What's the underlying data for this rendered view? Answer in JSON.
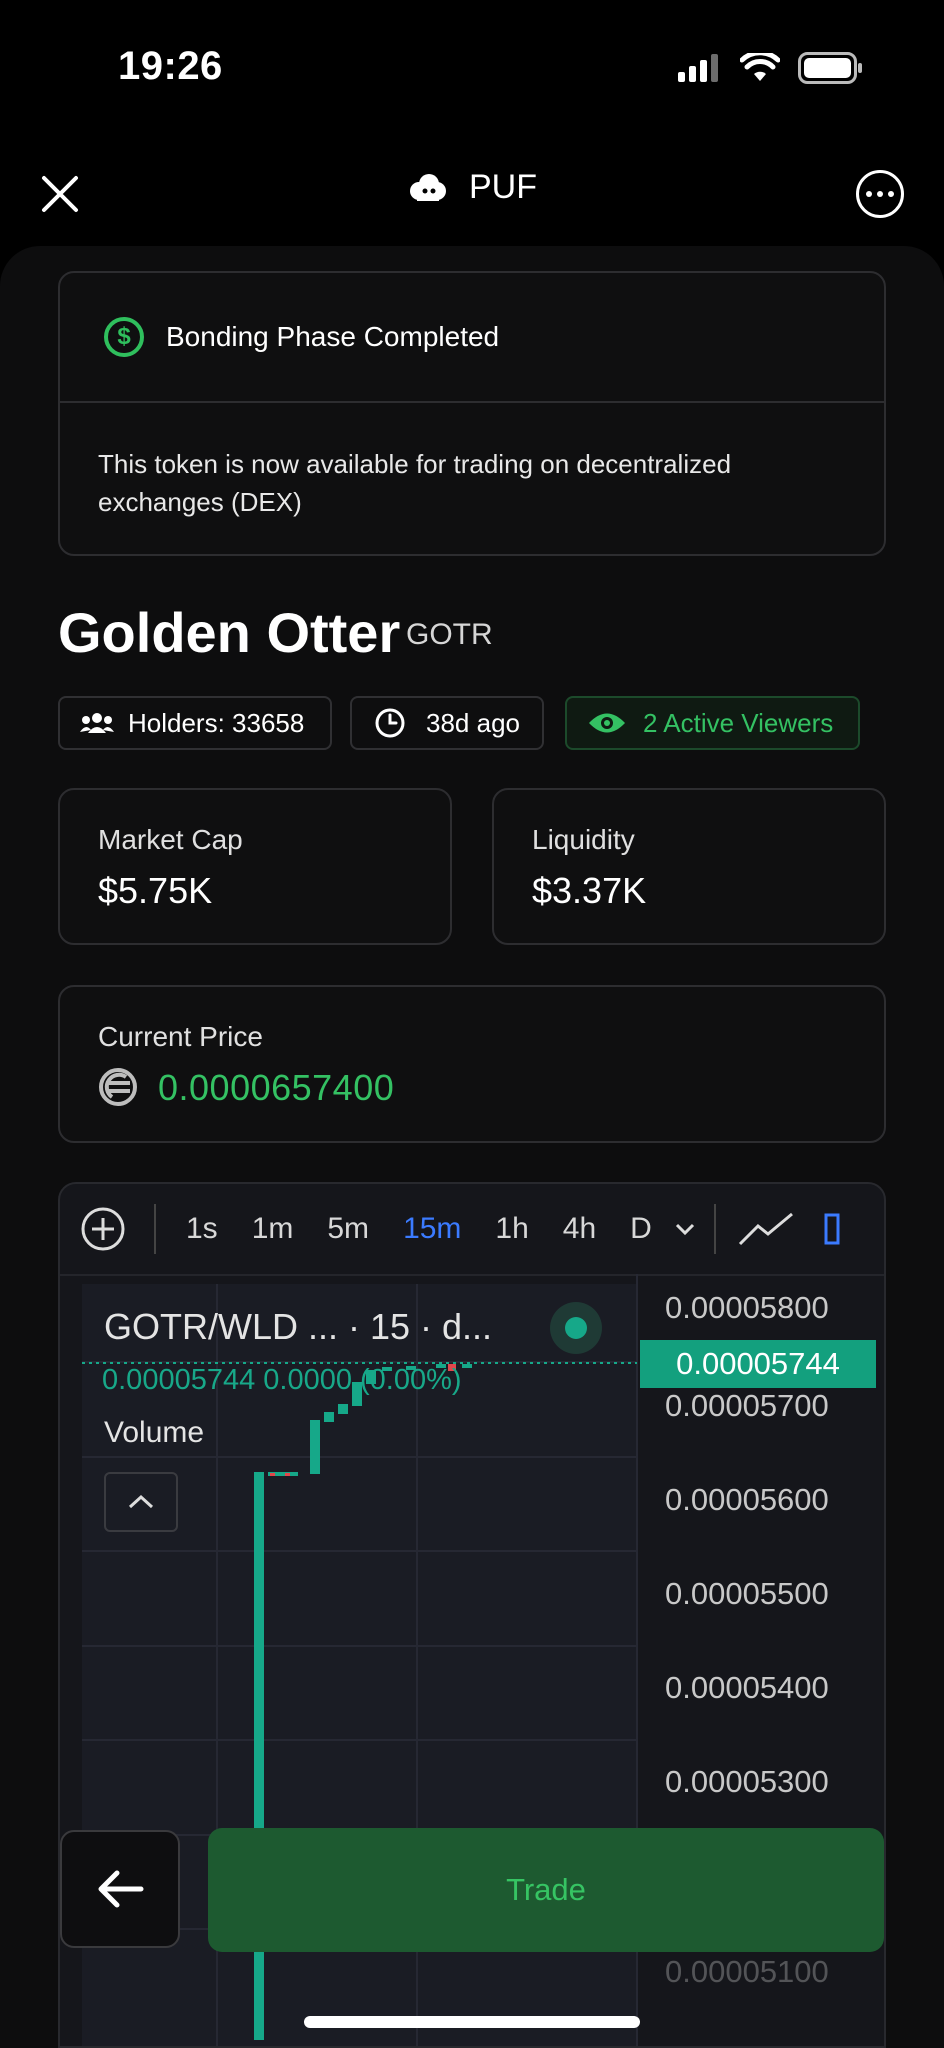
{
  "status_bar": {
    "time": "19:26"
  },
  "header": {
    "title": "PUF"
  },
  "bonding": {
    "title": "Bonding Phase Completed",
    "message": "This token is now available for trading on decentralized exchanges (DEX)"
  },
  "token": {
    "name": "Golden Otter",
    "symbol": "GOTR",
    "holders": "Holders: 33658",
    "age": "38d ago",
    "viewers": "2 Active Viewers"
  },
  "stats": {
    "market_cap_label": "Market Cap",
    "market_cap": "$5.75K",
    "liquidity_label": "Liquidity",
    "liquidity": "$3.37K"
  },
  "price": {
    "label": "Current Price",
    "value": "0.0000657400"
  },
  "chart": {
    "timeframes": [
      "1s",
      "1m",
      "5m",
      "15m",
      "1h",
      "4h",
      "D"
    ],
    "active_timeframe": "15m",
    "legend_title": "GOTR/WLD ...  · 15 · d...",
    "legend_values": "0.00005744  0.0000 (0.00%)",
    "volume_label": "Volume",
    "current_price_tag": "0.00005744",
    "axis_labels": [
      "0.00005800",
      "0.00005700",
      "0.00005600",
      "0.00005500",
      "0.00005400",
      "0.00005300",
      "0.00005100"
    ]
  },
  "chart_data": {
    "type": "candlestick",
    "title": "GOTR/WLD",
    "interval": "15",
    "ylim": [
      5.1e-05,
      5.85e-05
    ],
    "last_price": 5.744e-05,
    "change": "0.0000 (0.00%)"
  },
  "actions": {
    "trade_label": "Trade"
  },
  "colors": {
    "accent_green": "#34c163",
    "chart_green": "#16a889",
    "active_blue": "#3b7bff"
  }
}
